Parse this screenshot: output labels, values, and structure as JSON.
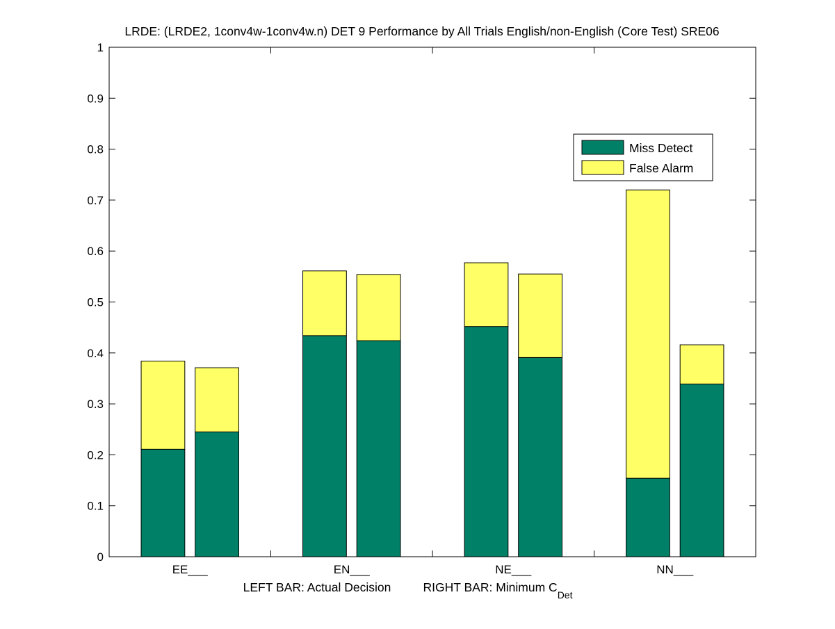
{
  "colors": {
    "background": "#ffffff",
    "miss": "#008066",
    "false_alarm": "#ffff66",
    "axis": "#000000"
  },
  "chart_data": {
    "type": "bar",
    "stacked": true,
    "title": "LRDE: (LRDE2, 1conv4w-1conv4w.n) DET 9 Performance by All Trials English/non-English (Core Test) SRE06",
    "categories": [
      "EE___",
      "EN___",
      "NE___",
      "NN___"
    ],
    "xlabel": {
      "left": "LEFT BAR: Actual Decision",
      "right_main": "RIGHT BAR: Minimum C",
      "right_sub": "Det"
    },
    "ylabel": "",
    "ylim": [
      0,
      1
    ],
    "yticks": [
      "0",
      "0.1",
      "0.2",
      "0.3",
      "0.4",
      "0.5",
      "0.6",
      "0.7",
      "0.8",
      "0.9",
      "1"
    ],
    "series": [
      {
        "name": "Miss Detect",
        "color": "#008066",
        "actual": [
          0.211,
          0.434,
          0.452,
          0.154
        ],
        "minimum": [
          0.245,
          0.424,
          0.391,
          0.339
        ]
      },
      {
        "name": "False Alarm",
        "color": "#ffff66",
        "actual": [
          0.173,
          0.127,
          0.125,
          0.566
        ],
        "minimum": [
          0.126,
          0.13,
          0.164,
          0.077
        ]
      }
    ],
    "legend": {
      "position": "upper-right",
      "entries": [
        "Miss Detect",
        "False Alarm"
      ]
    }
  }
}
